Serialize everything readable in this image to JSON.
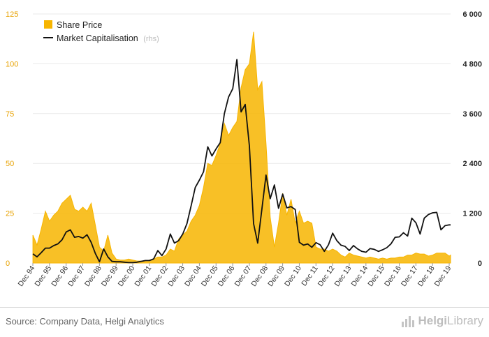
{
  "chart_data": {
    "type": "area+line",
    "left_axis": {
      "ticks": [
        0,
        25,
        50,
        75,
        100,
        125
      ],
      "tick_labels": [
        "0",
        "25",
        "50",
        "75",
        "100",
        "125"
      ],
      "ylim": [
        0,
        125
      ]
    },
    "right_axis": {
      "ticks": [
        0,
        1200,
        2400,
        3600,
        4800,
        6000
      ],
      "tick_labels": [
        "0",
        "1 200",
        "2 400",
        "3 600",
        "4 800",
        "6 000"
      ],
      "ylim": [
        0,
        6000
      ]
    },
    "x_labels": [
      "Dec 94",
      "Dec 95",
      "Dec 96",
      "Dec 97",
      "Dec 98",
      "Dec 99",
      "Dec 00",
      "Dec 01",
      "Dec 02",
      "Dec 03",
      "Dec 04",
      "Dec 05",
      "Dec 06",
      "Dec 07",
      "Dec 08",
      "Dec 09",
      "Dec 10",
      "Dec 11",
      "Dec 12",
      "Dec 13",
      "Dec 14",
      "Dec 15",
      "Dec 16",
      "Dec 17",
      "Dec 18",
      "Dec 19"
    ],
    "x_start": 1994.917,
    "x_end": 2020.0,
    "legend": {
      "placement": "top-left"
    },
    "series": [
      {
        "name": "Share Price",
        "axis": "left",
        "type": "area",
        "color": "#f7b500",
        "points": [
          [
            1994.92,
            14
          ],
          [
            1995.17,
            9
          ],
          [
            1995.42,
            17
          ],
          [
            1995.67,
            26
          ],
          [
            1995.92,
            21
          ],
          [
            1996.17,
            24
          ],
          [
            1996.42,
            26
          ],
          [
            1996.67,
            30
          ],
          [
            1996.92,
            32
          ],
          [
            1997.17,
            34
          ],
          [
            1997.42,
            27
          ],
          [
            1997.67,
            26
          ],
          [
            1997.92,
            28
          ],
          [
            1998.17,
            26
          ],
          [
            1998.42,
            30
          ],
          [
            1998.67,
            19
          ],
          [
            1998.92,
            8
          ],
          [
            1999.17,
            6
          ],
          [
            1999.42,
            14
          ],
          [
            1999.67,
            5
          ],
          [
            1999.92,
            2
          ],
          [
            2000.17,
            1.5
          ],
          [
            2000.42,
            1.5
          ],
          [
            2000.67,
            2
          ],
          [
            2000.92,
            1.5
          ],
          [
            2001.17,
            1
          ],
          [
            2001.42,
            1
          ],
          [
            2001.67,
            1
          ],
          [
            2001.92,
            1.5
          ],
          [
            2002.17,
            2
          ],
          [
            2002.42,
            3
          ],
          [
            2002.67,
            3
          ],
          [
            2002.92,
            4
          ],
          [
            2003.17,
            7
          ],
          [
            2003.42,
            6
          ],
          [
            2003.67,
            12
          ],
          [
            2003.92,
            14
          ],
          [
            2004.17,
            16
          ],
          [
            2004.42,
            21
          ],
          [
            2004.67,
            24
          ],
          [
            2004.92,
            29
          ],
          [
            2005.17,
            38
          ],
          [
            2005.42,
            50
          ],
          [
            2005.67,
            49
          ],
          [
            2005.92,
            54
          ],
          [
            2006.17,
            60
          ],
          [
            2006.42,
            70
          ],
          [
            2006.67,
            64
          ],
          [
            2006.92,
            68
          ],
          [
            2007.17,
            71
          ],
          [
            2007.42,
            88
          ],
          [
            2007.67,
            97
          ],
          [
            2007.92,
            100
          ],
          [
            2008.17,
            116
          ],
          [
            2008.42,
            87
          ],
          [
            2008.67,
            91
          ],
          [
            2008.92,
            60
          ],
          [
            2009.17,
            23
          ],
          [
            2009.42,
            8
          ],
          [
            2009.67,
            20
          ],
          [
            2009.92,
            35
          ],
          [
            2010.17,
            24
          ],
          [
            2010.42,
            32
          ],
          [
            2010.67,
            20
          ],
          [
            2010.92,
            26
          ],
          [
            2011.17,
            20
          ],
          [
            2011.42,
            21
          ],
          [
            2011.67,
            20
          ],
          [
            2011.92,
            8
          ],
          [
            2012.17,
            7
          ],
          [
            2012.42,
            7
          ],
          [
            2012.67,
            6
          ],
          [
            2012.92,
            7
          ],
          [
            2013.17,
            6
          ],
          [
            2013.42,
            4
          ],
          [
            2013.67,
            3
          ],
          [
            2013.92,
            5
          ],
          [
            2014.17,
            4
          ],
          [
            2014.42,
            3.5
          ],
          [
            2014.67,
            3
          ],
          [
            2014.92,
            2.5
          ],
          [
            2015.17,
            3
          ],
          [
            2015.42,
            2.5
          ],
          [
            2015.67,
            2
          ],
          [
            2015.92,
            2.5
          ],
          [
            2016.17,
            2
          ],
          [
            2016.42,
            2.5
          ],
          [
            2016.67,
            2.5
          ],
          [
            2016.92,
            3
          ],
          [
            2017.17,
            3
          ],
          [
            2017.42,
            4
          ],
          [
            2017.67,
            4
          ],
          [
            2017.92,
            5
          ],
          [
            2018.17,
            4.5
          ],
          [
            2018.42,
            4.5
          ],
          [
            2018.67,
            3.5
          ],
          [
            2018.92,
            4
          ],
          [
            2019.17,
            5
          ],
          [
            2019.42,
            5
          ],
          [
            2019.67,
            5
          ],
          [
            2019.92,
            3.5
          ],
          [
            2020.0,
            4
          ]
        ]
      },
      {
        "name": "Market Capitalisation",
        "name_suffix": "(rhs)",
        "axis": "right",
        "type": "line",
        "color": "#111111",
        "points": [
          [
            1994.92,
            220
          ],
          [
            1995.17,
            150
          ],
          [
            1995.42,
            250
          ],
          [
            1995.67,
            360
          ],
          [
            1995.92,
            360
          ],
          [
            1996.17,
            420
          ],
          [
            1996.42,
            460
          ],
          [
            1996.67,
            560
          ],
          [
            1996.92,
            750
          ],
          [
            1997.17,
            800
          ],
          [
            1997.42,
            620
          ],
          [
            1997.67,
            640
          ],
          [
            1997.92,
            600
          ],
          [
            1998.17,
            680
          ],
          [
            1998.42,
            500
          ],
          [
            1998.67,
            230
          ],
          [
            1998.92,
            30
          ],
          [
            1999.17,
            340
          ],
          [
            1999.42,
            150
          ],
          [
            1999.67,
            40
          ],
          [
            1999.92,
            30
          ],
          [
            2000.17,
            30
          ],
          [
            2000.42,
            20
          ],
          [
            2000.67,
            10
          ],
          [
            2000.92,
            10
          ],
          [
            2001.17,
            20
          ],
          [
            2001.42,
            40
          ],
          [
            2001.67,
            60
          ],
          [
            2001.92,
            60
          ],
          [
            2002.17,
            100
          ],
          [
            2002.42,
            300
          ],
          [
            2002.67,
            180
          ],
          [
            2002.92,
            340
          ],
          [
            2003.17,
            700
          ],
          [
            2003.42,
            480
          ],
          [
            2003.67,
            540
          ],
          [
            2003.92,
            700
          ],
          [
            2004.17,
            950
          ],
          [
            2004.42,
            1380
          ],
          [
            2004.67,
            1820
          ],
          [
            2004.92,
            2000
          ],
          [
            2005.17,
            2200
          ],
          [
            2005.42,
            2800
          ],
          [
            2005.67,
            2580
          ],
          [
            2005.92,
            2750
          ],
          [
            2006.17,
            2900
          ],
          [
            2006.42,
            3600
          ],
          [
            2006.67,
            4000
          ],
          [
            2006.92,
            4200
          ],
          [
            2007.17,
            4900
          ],
          [
            2007.42,
            3640
          ],
          [
            2007.67,
            3820
          ],
          [
            2007.92,
            2820
          ],
          [
            2008.17,
            950
          ],
          [
            2008.42,
            480
          ],
          [
            2008.67,
            1300
          ],
          [
            2008.92,
            2120
          ],
          [
            2009.17,
            1550
          ],
          [
            2009.42,
            1880
          ],
          [
            2009.67,
            1320
          ],
          [
            2009.92,
            1660
          ],
          [
            2010.17,
            1330
          ],
          [
            2010.42,
            1360
          ],
          [
            2010.67,
            1290
          ],
          [
            2010.92,
            500
          ],
          [
            2011.17,
            430
          ],
          [
            2011.42,
            460
          ],
          [
            2011.67,
            380
          ],
          [
            2011.92,
            490
          ],
          [
            2012.17,
            440
          ],
          [
            2012.42,
            280
          ],
          [
            2012.67,
            440
          ],
          [
            2012.92,
            720
          ],
          [
            2013.17,
            540
          ],
          [
            2013.42,
            430
          ],
          [
            2013.67,
            400
          ],
          [
            2013.92,
            300
          ],
          [
            2014.17,
            420
          ],
          [
            2014.42,
            340
          ],
          [
            2014.67,
            280
          ],
          [
            2014.92,
            260
          ],
          [
            2015.17,
            350
          ],
          [
            2015.42,
            330
          ],
          [
            2015.67,
            280
          ],
          [
            2015.92,
            320
          ],
          [
            2016.17,
            370
          ],
          [
            2016.42,
            460
          ],
          [
            2016.67,
            620
          ],
          [
            2016.92,
            630
          ],
          [
            2017.17,
            730
          ],
          [
            2017.42,
            650
          ],
          [
            2017.67,
            1080
          ],
          [
            2017.92,
            970
          ],
          [
            2018.17,
            700
          ],
          [
            2018.42,
            1080
          ],
          [
            2018.67,
            1170
          ],
          [
            2018.92,
            1210
          ],
          [
            2019.17,
            1220
          ],
          [
            2019.42,
            800
          ],
          [
            2019.67,
            900
          ],
          [
            2019.92,
            920
          ],
          [
            2020.0,
            920
          ]
        ]
      }
    ]
  },
  "footer": {
    "source": "Source: Company Data, Helgi Analytics",
    "brand_bold": "Helgi",
    "brand_light": "Library"
  }
}
